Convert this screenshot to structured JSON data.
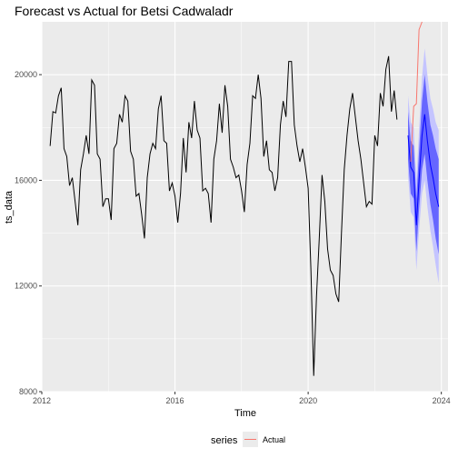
{
  "chart_data": {
    "type": "line",
    "title": "Forecast vs Actual for Betsi Cadwaladr",
    "xlabel": "Time",
    "ylabel": "ts_data",
    "xlim": [
      2012.0,
      2024.2
    ],
    "ylim": [
      8000,
      22000
    ],
    "x_ticks": [
      2012,
      2016,
      2020,
      2024
    ],
    "x_tick_labels": [
      "2012",
      "2016",
      "2020",
      "2024"
    ],
    "y_ticks": [
      8000,
      12000,
      16000,
      20000
    ],
    "y_tick_labels": [
      "8000",
      "12000",
      "16000",
      "20000"
    ],
    "grid": true,
    "legend": {
      "title": "series",
      "position": "bottom",
      "entries": [
        {
          "label": "Actual",
          "color": "#f8766d"
        }
      ]
    },
    "colors": {
      "panel": "#ebebeb",
      "grid": "#ffffff",
      "observed": "#000000",
      "actual": "#f8766d",
      "forecast": "#0000ff",
      "pi80": "#6666ff",
      "pi95": "#c4c4ff"
    },
    "observed": {
      "start": 2012.25,
      "freq": 12,
      "values": [
        17300,
        18600,
        18550,
        19200,
        19500,
        17200,
        16900,
        15800,
        16100,
        15200,
        14300,
        16400,
        17000,
        17700,
        17000,
        19800,
        19600,
        17000,
        16800,
        15000,
        15300,
        15300,
        14500,
        17200,
        17400,
        18500,
        18200,
        19200,
        19000,
        17100,
        16800,
        15400,
        15500,
        14700,
        13800,
        16100,
        17000,
        17400,
        17200,
        18700,
        19200,
        17500,
        17400,
        15600,
        15900,
        15400,
        14400,
        15500,
        17600,
        16300,
        18200,
        17600,
        19000,
        17900,
        17600,
        15600,
        15700,
        15500,
        14400,
        16800,
        17500,
        18900,
        17800,
        19600,
        18800,
        16800,
        16500,
        16100,
        16200,
        15600,
        14800,
        16600,
        17400,
        19200,
        19100,
        20000,
        19100,
        16900,
        17500,
        16400,
        16300,
        15600,
        16100,
        18100,
        19000,
        18400,
        20500,
        20500,
        18100,
        17300,
        16700,
        17200,
        16500,
        15700,
        12600,
        8600,
        11600,
        13800,
        16200,
        15200,
        13400,
        12600,
        12400,
        11700,
        11400,
        14000,
        16400,
        17700,
        18700,
        19300,
        18400,
        17500,
        16800,
        15900,
        15000,
        15200,
        15100,
        17700,
        17300,
        19300,
        18800,
        20200,
        20700,
        18600,
        19400,
        18300
      ]
    },
    "actual": {
      "x": [
        2023.08,
        2023.17,
        2023.25,
        2023.33,
        2023.42
      ],
      "values": [
        16700,
        18800,
        18900,
        21700,
        22000
      ]
    },
    "forecast": {
      "x": [
        2023.0,
        2023.08,
        2023.17,
        2023.25,
        2023.33,
        2023.42,
        2023.5,
        2023.58,
        2023.67,
        2023.75,
        2023.83,
        2023.92
      ],
      "mean": [
        17700,
        16500,
        16300,
        14300,
        16000,
        17700,
        18500,
        17500,
        16600,
        16100,
        15500,
        15000
      ],
      "lo80": [
        16800,
        15500,
        15300,
        13300,
        14900,
        16400,
        17000,
        16000,
        15100,
        14500,
        13800,
        13200
      ],
      "hi80": [
        18600,
        17500,
        17300,
        15300,
        17100,
        19000,
        20000,
        19000,
        18100,
        17700,
        17200,
        16800
      ],
      "lo95": [
        16200,
        14800,
        14600,
        12600,
        14100,
        15500,
        16000,
        15000,
        14100,
        13500,
        12800,
        12100
      ],
      "hi95": [
        19200,
        18200,
        18000,
        16000,
        17900,
        19900,
        21000,
        20000,
        19100,
        18700,
        18200,
        17900
      ]
    }
  }
}
